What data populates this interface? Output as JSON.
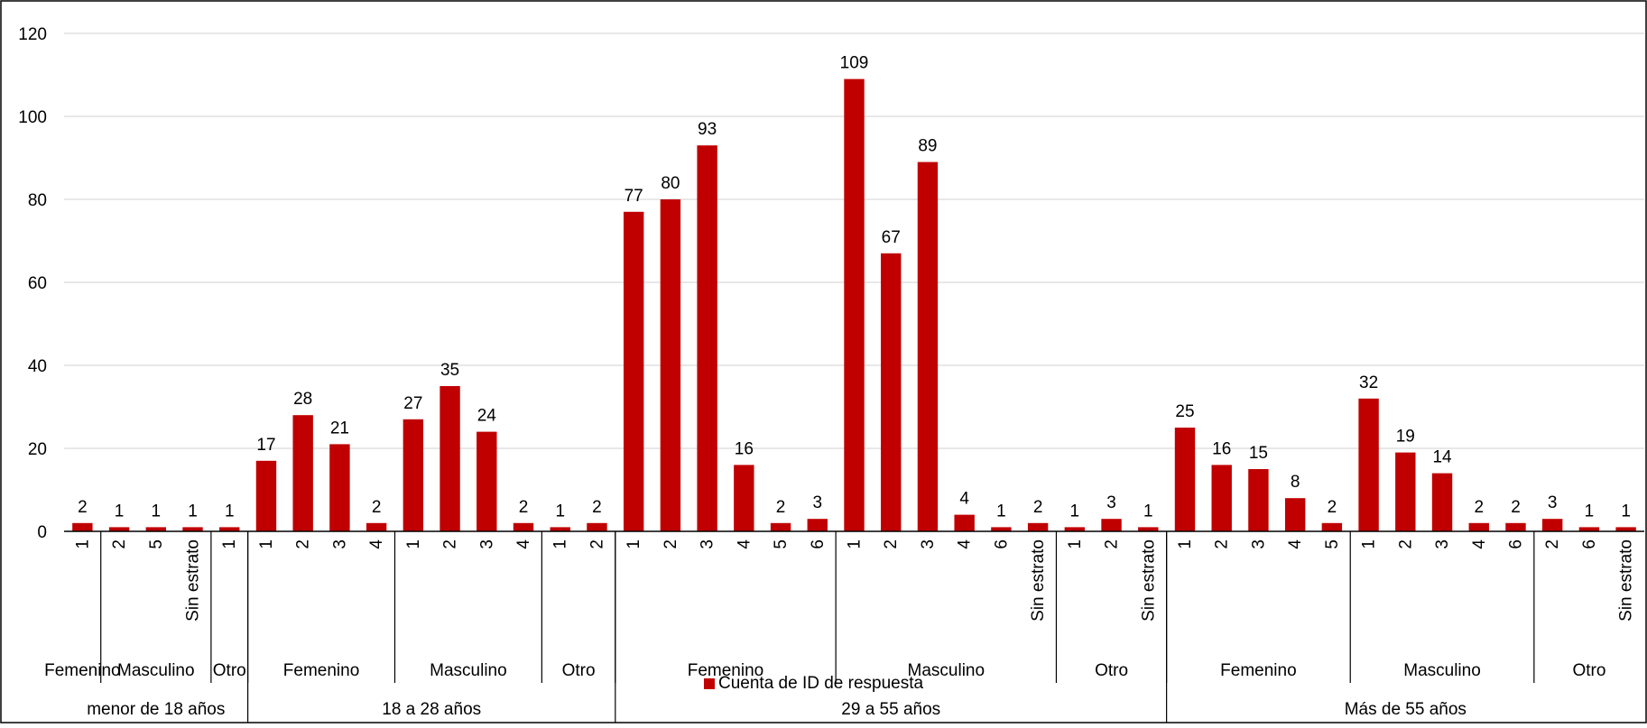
{
  "chart_data": {
    "type": "bar",
    "title": "",
    "xlabel": "",
    "ylabel": "",
    "ylim": [
      0,
      120
    ],
    "yticks": [
      0,
      20,
      40,
      60,
      80,
      100,
      120
    ],
    "grid": true,
    "legend_position": "bottom",
    "colors": {
      "bar": "#C00000",
      "grid": "#D9D9D9",
      "axis": "#000000"
    },
    "series": [
      {
        "name": "Cuenta de ID de respuesta",
        "values": [
          2,
          1,
          1,
          1,
          1,
          17,
          28,
          21,
          2,
          27,
          35,
          24,
          2,
          1,
          2,
          77,
          80,
          93,
          16,
          2,
          3,
          109,
          67,
          89,
          4,
          1,
          2,
          1,
          3,
          1,
          25,
          16,
          15,
          8,
          2,
          32,
          19,
          14,
          2,
          2,
          3,
          1,
          1
        ]
      }
    ],
    "categories": [
      "1",
      "2",
      "5",
      "Sin estrato",
      "1",
      "1",
      "2",
      "3",
      "4",
      "1",
      "2",
      "3",
      "4",
      "1",
      "2",
      "1",
      "2",
      "3",
      "4",
      "5",
      "6",
      "1",
      "2",
      "3",
      "4",
      "6",
      "Sin estrato",
      "1",
      "2",
      "Sin estrato",
      "1",
      "2",
      "3",
      "4",
      "5",
      "1",
      "2",
      "3",
      "4",
      "6",
      "2",
      "6",
      "Sin estrato"
    ],
    "level2_groups": [
      {
        "label": "Femenino",
        "start": 0,
        "count": 1
      },
      {
        "label": "Masculino",
        "start": 1,
        "count": 3
      },
      {
        "label": "Otro",
        "start": 4,
        "count": 1
      },
      {
        "label": "Femenino",
        "start": 5,
        "count": 4
      },
      {
        "label": "Masculino",
        "start": 9,
        "count": 4
      },
      {
        "label": "Otro",
        "start": 13,
        "count": 2
      },
      {
        "label": "Femenino",
        "start": 15,
        "count": 6
      },
      {
        "label": "Masculino",
        "start": 21,
        "count": 6
      },
      {
        "label": "Otro",
        "start": 27,
        "count": 3
      },
      {
        "label": "Femenino",
        "start": 30,
        "count": 5
      },
      {
        "label": "Masculino",
        "start": 35,
        "count": 5
      },
      {
        "label": "Otro",
        "start": 40,
        "count": 3
      }
    ],
    "level1_groups": [
      {
        "label": "menor de 18 años",
        "start": 0,
        "count": 5
      },
      {
        "label": "18 a 28 años",
        "start": 5,
        "count": 10
      },
      {
        "label": "29 a 55 años",
        "start": 15,
        "count": 15
      },
      {
        "label": "Más de 55 años",
        "start": 30,
        "count": 13
      }
    ]
  }
}
